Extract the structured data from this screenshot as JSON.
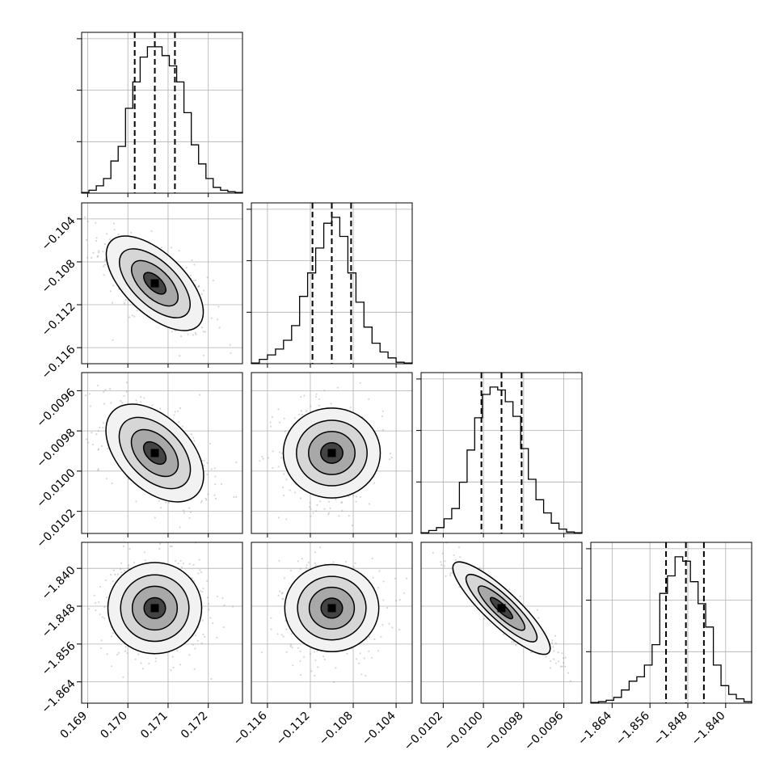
{
  "chart_data": {
    "type": "corner",
    "n_params": 4,
    "grid": true,
    "parameters": [
      {
        "ticks": [
          0.169,
          0.17,
          0.171,
          0.172
        ],
        "tick_labels": [
          "0.169",
          "0.170",
          "0.171",
          "0.172"
        ],
        "range": [
          0.16885,
          0.17285
        ],
        "quantiles": [
          0.17017,
          0.17067,
          0.17117
        ]
      },
      {
        "ticks": [
          -0.116,
          -0.112,
          -0.108,
          -0.104
        ],
        "tick_labels": [
          "−0.116",
          "−0.112",
          "−0.108",
          "−0.104"
        ],
        "range": [
          -0.1175,
          -0.1025
        ],
        "quantiles": [
          -0.1118,
          -0.11,
          -0.1082
        ]
      },
      {
        "ticks": [
          -0.0102,
          -0.01,
          -0.0098,
          -0.0096
        ],
        "tick_labels": [
          "−0.0102",
          "−0.0100",
          "−0.0098",
          "−0.0096"
        ],
        "range": [
          -0.01031,
          -0.00951
        ],
        "quantiles": [
          -0.01001,
          -0.00991,
          -0.00981
        ]
      },
      {
        "ticks": [
          -1.864,
          -1.856,
          -1.848,
          -1.84
        ],
        "tick_labels": [
          "−1.864",
          "−1.856",
          "−1.848",
          "−1.840"
        ],
        "range": [
          -1.8685,
          -1.8345
        ],
        "quantiles": [
          -1.8526,
          -1.8484,
          -1.8446
        ]
      }
    ],
    "histograms": [
      [
        0.5,
        2,
        5,
        10,
        22,
        32,
        58,
        76,
        93,
        100,
        100,
        94,
        87,
        76,
        55,
        33,
        20,
        10,
        4,
        2,
        1,
        0.5
      ],
      [
        0.5,
        3,
        6,
        10,
        16,
        26,
        46,
        62,
        79,
        96,
        100,
        87,
        62,
        42,
        25,
        14,
        8,
        4,
        1,
        0.5
      ],
      [
        0.5,
        2,
        4,
        10,
        17,
        35,
        57,
        79,
        95,
        100,
        98,
        90,
        80,
        58,
        37,
        23,
        14,
        7,
        3,
        1,
        0.5
      ],
      [
        0.5,
        1,
        2,
        4,
        9,
        15,
        18,
        26,
        40,
        75,
        87,
        100,
        97,
        83,
        68,
        52,
        26,
        12,
        6,
        3,
        1
      ]
    ],
    "correlations": {
      "1_0": -0.65,
      "2_0": -0.5,
      "2_1": 0.0,
      "3_0": 0.05,
      "3_1": 0.0,
      "3_2": -0.92
    }
  }
}
